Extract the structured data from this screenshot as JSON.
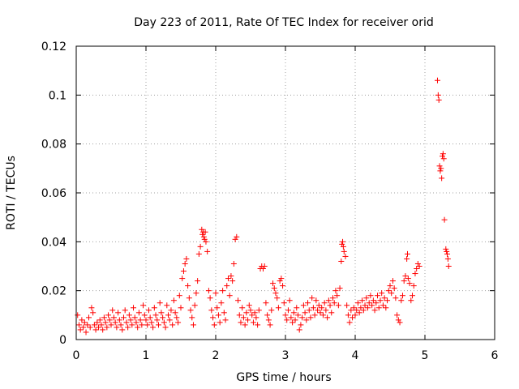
{
  "chart_data": {
    "type": "scatter",
    "title": "Day 223 of 2011, Rate Of TEC Index for receiver orid",
    "xlabel": "GPS time / hours",
    "ylabel": "ROTI / TECUs",
    "xlim": [
      0,
      6
    ],
    "ylim": [
      0,
      0.12
    ],
    "xticks": [
      0,
      1,
      2,
      3,
      4,
      5,
      6
    ],
    "xtick_labels": [
      "0",
      "1",
      "2",
      "3",
      "4",
      "5",
      "6"
    ],
    "yticks": [
      0,
      0.02,
      0.04,
      0.06,
      0.08,
      0.1,
      0.12
    ],
    "ytick_labels": [
      "0",
      "0.02",
      "0.04",
      "0.06",
      "0.08",
      "0.1",
      "0.12"
    ],
    "grid": true,
    "marker": "+",
    "color": "#ff0000",
    "series": [
      {
        "name": "ROTI",
        "points": [
          [
            0.02,
            0.01
          ],
          [
            0.04,
            0.006
          ],
          [
            0.06,
            0.004
          ],
          [
            0.08,
            0.008
          ],
          [
            0.1,
            0.005
          ],
          [
            0.12,
            0.007
          ],
          [
            0.14,
            0.003
          ],
          [
            0.16,
            0.006
          ],
          [
            0.18,
            0.009
          ],
          [
            0.2,
            0.005
          ],
          [
            0.22,
            0.013
          ],
          [
            0.24,
            0.011
          ],
          [
            0.26,
            0.006
          ],
          [
            0.28,
            0.004
          ],
          [
            0.3,
            0.007
          ],
          [
            0.32,
            0.005
          ],
          [
            0.34,
            0.008
          ],
          [
            0.36,
            0.006
          ],
          [
            0.38,
            0.004
          ],
          [
            0.4,
            0.009
          ],
          [
            0.42,
            0.007
          ],
          [
            0.44,
            0.005
          ],
          [
            0.46,
            0.01
          ],
          [
            0.48,
            0.008
          ],
          [
            0.5,
            0.006
          ],
          [
            0.52,
            0.012
          ],
          [
            0.54,
            0.009
          ],
          [
            0.56,
            0.007
          ],
          [
            0.58,
            0.005
          ],
          [
            0.6,
            0.011
          ],
          [
            0.62,
            0.008
          ],
          [
            0.64,
            0.006
          ],
          [
            0.66,
            0.004
          ],
          [
            0.68,
            0.009
          ],
          [
            0.7,
            0.012
          ],
          [
            0.72,
            0.007
          ],
          [
            0.74,
            0.005
          ],
          [
            0.76,
            0.01
          ],
          [
            0.78,
            0.008
          ],
          [
            0.8,
            0.006
          ],
          [
            0.82,
            0.013
          ],
          [
            0.84,
            0.009
          ],
          [
            0.86,
            0.007
          ],
          [
            0.88,
            0.005
          ],
          [
            0.9,
            0.011
          ],
          [
            0.92,
            0.008
          ],
          [
            0.94,
            0.006
          ],
          [
            0.96,
            0.014
          ],
          [
            0.98,
            0.01
          ],
          [
            1.0,
            0.008
          ],
          [
            1.02,
            0.006
          ],
          [
            1.04,
            0.012
          ],
          [
            1.06,
            0.009
          ],
          [
            1.08,
            0.007
          ],
          [
            1.1,
            0.005
          ],
          [
            1.12,
            0.013
          ],
          [
            1.14,
            0.01
          ],
          [
            1.16,
            0.008
          ],
          [
            1.18,
            0.006
          ],
          [
            1.2,
            0.015
          ],
          [
            1.22,
            0.011
          ],
          [
            1.24,
            0.009
          ],
          [
            1.26,
            0.007
          ],
          [
            1.28,
            0.005
          ],
          [
            1.3,
            0.014
          ],
          [
            1.32,
            0.01
          ],
          [
            1.34,
            0.008
          ],
          [
            1.36,
            0.012
          ],
          [
            1.38,
            0.006
          ],
          [
            1.4,
            0.016
          ],
          [
            1.42,
            0.011
          ],
          [
            1.44,
            0.009
          ],
          [
            1.46,
            0.007
          ],
          [
            1.48,
            0.018
          ],
          [
            1.5,
            0.013
          ],
          [
            1.52,
            0.025
          ],
          [
            1.54,
            0.028
          ],
          [
            1.56,
            0.031
          ],
          [
            1.58,
            0.033
          ],
          [
            1.6,
            0.022
          ],
          [
            1.62,
            0.017
          ],
          [
            1.64,
            0.012
          ],
          [
            1.66,
            0.009
          ],
          [
            1.68,
            0.006
          ],
          [
            1.7,
            0.014
          ],
          [
            1.72,
            0.019
          ],
          [
            1.74,
            0.024
          ],
          [
            1.76,
            0.035
          ],
          [
            1.78,
            0.038
          ],
          [
            1.8,
            0.045
          ],
          [
            1.81,
            0.043
          ],
          [
            1.82,
            0.044
          ],
          [
            1.83,
            0.042
          ],
          [
            1.84,
            0.041
          ],
          [
            1.85,
            0.044
          ],
          [
            1.86,
            0.04
          ],
          [
            1.88,
            0.036
          ],
          [
            1.9,
            0.02
          ],
          [
            1.92,
            0.017
          ],
          [
            1.94,
            0.012
          ],
          [
            1.96,
            0.009
          ],
          [
            1.98,
            0.006
          ],
          [
            2.0,
            0.019
          ],
          [
            2.02,
            0.013
          ],
          [
            2.04,
            0.01
          ],
          [
            2.06,
            0.007
          ],
          [
            2.08,
            0.015
          ],
          [
            2.1,
            0.02
          ],
          [
            2.12,
            0.011
          ],
          [
            2.14,
            0.008
          ],
          [
            2.16,
            0.022
          ],
          [
            2.18,
            0.025
          ],
          [
            2.2,
            0.018
          ],
          [
            2.22,
            0.026
          ],
          [
            2.24,
            0.024
          ],
          [
            2.26,
            0.031
          ],
          [
            2.28,
            0.041
          ],
          [
            2.3,
            0.042
          ],
          [
            2.32,
            0.016
          ],
          [
            2.34,
            0.01
          ],
          [
            2.36,
            0.007
          ],
          [
            2.38,
            0.013
          ],
          [
            2.4,
            0.009
          ],
          [
            2.42,
            0.006
          ],
          [
            2.44,
            0.011
          ],
          [
            2.46,
            0.008
          ],
          [
            2.48,
            0.014
          ],
          [
            2.5,
            0.012
          ],
          [
            2.52,
            0.01
          ],
          [
            2.54,
            0.007
          ],
          [
            2.56,
            0.011
          ],
          [
            2.58,
            0.009
          ],
          [
            2.6,
            0.006
          ],
          [
            2.62,
            0.012
          ],
          [
            2.64,
            0.029
          ],
          [
            2.66,
            0.03
          ],
          [
            2.68,
            0.029
          ],
          [
            2.7,
            0.03
          ],
          [
            2.72,
            0.015
          ],
          [
            2.74,
            0.01
          ],
          [
            2.76,
            0.008
          ],
          [
            2.78,
            0.006
          ],
          [
            2.8,
            0.012
          ],
          [
            2.82,
            0.023
          ],
          [
            2.84,
            0.021
          ],
          [
            2.86,
            0.019
          ],
          [
            2.88,
            0.017
          ],
          [
            2.9,
            0.013
          ],
          [
            2.92,
            0.024
          ],
          [
            2.94,
            0.025
          ],
          [
            2.96,
            0.022
          ],
          [
            2.98,
            0.015
          ],
          [
            3.0,
            0.01
          ],
          [
            3.02,
            0.008
          ],
          [
            3.04,
            0.012
          ],
          [
            3.06,
            0.016
          ],
          [
            3.08,
            0.009
          ],
          [
            3.1,
            0.007
          ],
          [
            3.12,
            0.011
          ],
          [
            3.14,
            0.008
          ],
          [
            3.16,
            0.013
          ],
          [
            3.18,
            0.01
          ],
          [
            3.2,
            0.004
          ],
          [
            3.22,
            0.006
          ],
          [
            3.24,
            0.009
          ],
          [
            3.26,
            0.014
          ],
          [
            3.28,
            0.011
          ],
          [
            3.3,
            0.008
          ],
          [
            3.32,
            0.015
          ],
          [
            3.34,
            0.012
          ],
          [
            3.36,
            0.009
          ],
          [
            3.38,
            0.017
          ],
          [
            3.4,
            0.013
          ],
          [
            3.42,
            0.01
          ],
          [
            3.44,
            0.016
          ],
          [
            3.46,
            0.012
          ],
          [
            3.48,
            0.014
          ],
          [
            3.5,
            0.011
          ],
          [
            3.52,
            0.013
          ],
          [
            3.54,
            0.01
          ],
          [
            3.56,
            0.015
          ],
          [
            3.58,
            0.012
          ],
          [
            3.6,
            0.009
          ],
          [
            3.62,
            0.016
          ],
          [
            3.64,
            0.014
          ],
          [
            3.66,
            0.011
          ],
          [
            3.68,
            0.017
          ],
          [
            3.7,
            0.015
          ],
          [
            3.72,
            0.02
          ],
          [
            3.74,
            0.018
          ],
          [
            3.76,
            0.014
          ],
          [
            3.78,
            0.021
          ],
          [
            3.8,
            0.032
          ],
          [
            3.81,
            0.039
          ],
          [
            3.82,
            0.04
          ],
          [
            3.83,
            0.038
          ],
          [
            3.84,
            0.036
          ],
          [
            3.86,
            0.034
          ],
          [
            3.88,
            0.014
          ],
          [
            3.9,
            0.01
          ],
          [
            3.92,
            0.007
          ],
          [
            3.94,
            0.012
          ],
          [
            3.96,
            0.009
          ],
          [
            3.98,
            0.013
          ],
          [
            4.0,
            0.01
          ],
          [
            4.02,
            0.012
          ],
          [
            4.04,
            0.015
          ],
          [
            4.06,
            0.011
          ],
          [
            4.08,
            0.013
          ],
          [
            4.1,
            0.016
          ],
          [
            4.12,
            0.012
          ],
          [
            4.14,
            0.014
          ],
          [
            4.16,
            0.017
          ],
          [
            4.18,
            0.013
          ],
          [
            4.2,
            0.015
          ],
          [
            4.22,
            0.018
          ],
          [
            4.24,
            0.014
          ],
          [
            4.26,
            0.016
          ],
          [
            4.28,
            0.012
          ],
          [
            4.3,
            0.015
          ],
          [
            4.32,
            0.018
          ],
          [
            4.34,
            0.013
          ],
          [
            4.36,
            0.016
          ],
          [
            4.38,
            0.019
          ],
          [
            4.4,
            0.014
          ],
          [
            4.42,
            0.017
          ],
          [
            4.44,
            0.013
          ],
          [
            4.46,
            0.016
          ],
          [
            4.48,
            0.02
          ],
          [
            4.5,
            0.022
          ],
          [
            4.52,
            0.019
          ],
          [
            4.54,
            0.024
          ],
          [
            4.56,
            0.021
          ],
          [
            4.58,
            0.017
          ],
          [
            4.6,
            0.01
          ],
          [
            4.62,
            0.008
          ],
          [
            4.64,
            0.007
          ],
          [
            4.66,
            0.016
          ],
          [
            4.68,
            0.018
          ],
          [
            4.7,
            0.024
          ],
          [
            4.72,
            0.026
          ],
          [
            4.74,
            0.033
          ],
          [
            4.75,
            0.035
          ],
          [
            4.76,
            0.025
          ],
          [
            4.78,
            0.023
          ],
          [
            4.8,
            0.016
          ],
          [
            4.82,
            0.018
          ],
          [
            4.84,
            0.022
          ],
          [
            4.86,
            0.027
          ],
          [
            4.88,
            0.029
          ],
          [
            4.9,
            0.031
          ],
          [
            4.92,
            0.03
          ],
          [
            5.18,
            0.106
          ],
          [
            5.19,
            0.1
          ],
          [
            5.2,
            0.098
          ],
          [
            5.21,
            0.071
          ],
          [
            5.22,
            0.069
          ],
          [
            5.23,
            0.07
          ],
          [
            5.24,
            0.066
          ],
          [
            5.25,
            0.075
          ],
          [
            5.26,
            0.076
          ],
          [
            5.27,
            0.074
          ],
          [
            5.28,
            0.049
          ],
          [
            5.3,
            0.037
          ],
          [
            5.31,
            0.036
          ],
          [
            5.32,
            0.035
          ],
          [
            5.33,
            0.033
          ],
          [
            5.34,
            0.03
          ]
        ]
      }
    ]
  }
}
